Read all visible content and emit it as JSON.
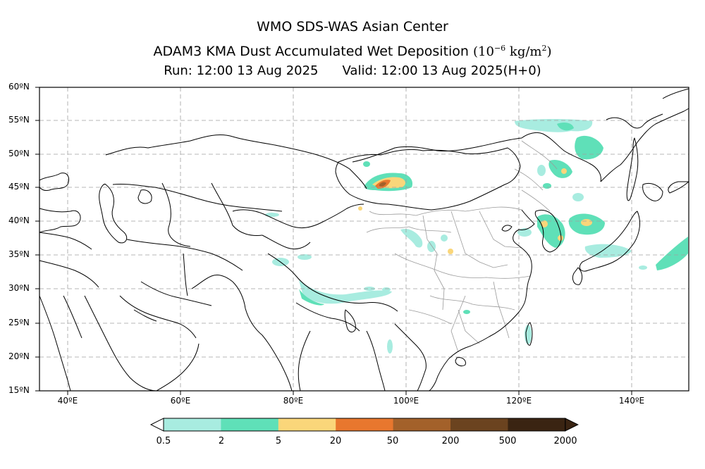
{
  "titles": {
    "line1": "WMO SDS-WAS Asian Center",
    "line2_main": "ADAM3 KMA Dust Accumulated Wet Deposition",
    "line2_unit_open": "(10",
    "line2_unit_exp": "−6",
    "line2_unit_mid": " kg/m",
    "line2_unit_exp2": "2",
    "line2_unit_close": ")",
    "run": "Run: 12:00 13 Aug 2025",
    "valid": "Valid: 12:00 13 Aug 2025(H+0)"
  },
  "axes": {
    "lat_labels": [
      "60ºN",
      "55ºN",
      "50ºN",
      "45ºN",
      "40ºN",
      "35ºN",
      "30ºN",
      "25ºN",
      "20ºN",
      "15ºN"
    ],
    "lon_labels": [
      "40ºE",
      "60ºE",
      "80ºE",
      "100ºE",
      "120ºE",
      "140ºE"
    ],
    "lat_range": [
      15,
      60
    ],
    "lon_range": [
      35,
      150
    ],
    "grid": "dashed"
  },
  "colorbar": {
    "labels": [
      "0.5",
      "2",
      "5",
      "20",
      "50",
      "200",
      "500",
      "2000"
    ],
    "colors": [
      "#a8ece0",
      "#5fe0b8",
      "#fad67a",
      "#e8772e",
      "#a3612a",
      "#6b431f",
      "#3a2412"
    ],
    "extend": "both"
  },
  "deposition_areas": [
    {
      "region": "Mongolia west",
      "level": "5-20"
    },
    {
      "region": "Northeast China",
      "level": "2-5"
    },
    {
      "region": "Korea / Japan Sea",
      "level": "5-20"
    },
    {
      "region": "Tibet south",
      "level": "0.5-2"
    }
  ]
}
